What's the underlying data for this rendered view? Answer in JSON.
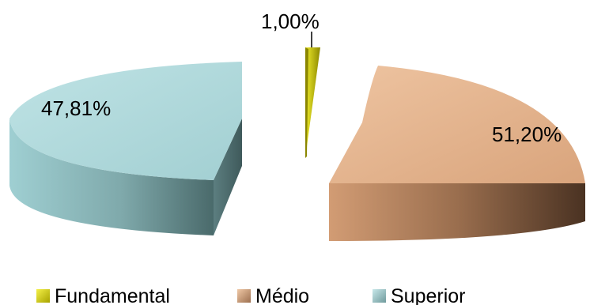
{
  "chart_data": {
    "type": "pie",
    "title": "",
    "exploded": true,
    "three_d": true,
    "legend_position": "bottom",
    "slices": [
      {
        "name": "Fundamental",
        "label": "1,00%",
        "value": 1.0,
        "color": "#d6d100"
      },
      {
        "name": "Médio",
        "label": "51,20%",
        "value": 51.2,
        "color": "#e3b089"
      },
      {
        "name": "Superior",
        "label": "47,81%",
        "value": 47.81,
        "color": "#a9d6d8"
      }
    ]
  }
}
